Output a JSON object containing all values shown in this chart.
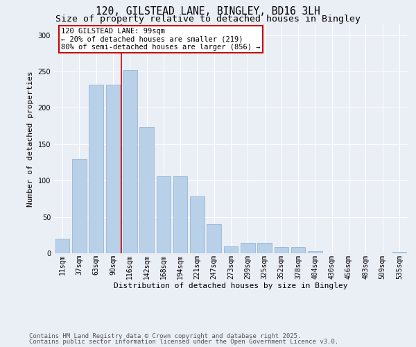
{
  "title1": "120, GILSTEAD LANE, BINGLEY, BD16 3LH",
  "title2": "Size of property relative to detached houses in Bingley",
  "xlabel": "Distribution of detached houses by size in Bingley",
  "ylabel": "Number of detached properties",
  "categories": [
    "11sqm",
    "37sqm",
    "63sqm",
    "90sqm",
    "116sqm",
    "142sqm",
    "168sqm",
    "194sqm",
    "221sqm",
    "247sqm",
    "273sqm",
    "299sqm",
    "325sqm",
    "352sqm",
    "378sqm",
    "404sqm",
    "430sqm",
    "456sqm",
    "483sqm",
    "509sqm",
    "535sqm"
  ],
  "values": [
    20,
    130,
    232,
    232,
    252,
    174,
    106,
    106,
    78,
    40,
    10,
    14,
    14,
    9,
    9,
    3,
    0,
    0,
    0,
    0,
    2
  ],
  "bar_color": "#b8d0e8",
  "bar_edge_color": "#8ab0d0",
  "bg_color": "#eaeef5",
  "grid_color": "#ffffff",
  "vline_x": 4.0,
  "vline_color": "#cc0000",
  "annotation_text": "120 GILSTEAD LANE: 99sqm\n← 20% of detached houses are smaller (219)\n80% of semi-detached houses are larger (856) →",
  "annotation_box_color": "#cc0000",
  "footer1": "Contains HM Land Registry data © Crown copyright and database right 2025.",
  "footer2": "Contains public sector information licensed under the Open Government Licence v3.0.",
  "ylim": [
    0,
    315
  ],
  "title_fontsize": 10.5,
  "subtitle_fontsize": 9.5,
  "axis_fontsize": 8,
  "tick_fontsize": 7,
  "footer_fontsize": 6.5,
  "annot_fontsize": 7.5
}
